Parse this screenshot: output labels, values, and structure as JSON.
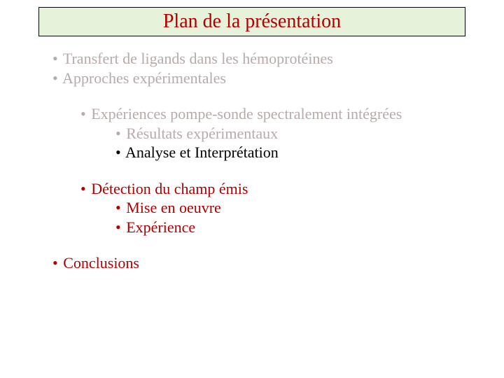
{
  "title": {
    "text": "Plan de la présentation",
    "font_size": 28,
    "color": "#b00000",
    "background": "#e6f2d9",
    "border_color": "#000000"
  },
  "bullets": {
    "l1a": "Transfert de ligands dans les hémoprotéines",
    "l1b": "Approches expérimentales",
    "l2a": "Expériences pompe-sonde spectralement intégrées",
    "l3a": "Résultats expérimentaux",
    "l3b": "Analyse et Interprétation",
    "l2b": "Détection du champ émis",
    "l3c": "Mise en oeuvre",
    "l3d": "Expérience",
    "l1c": "Conclusions"
  },
  "colors": {
    "dim": "#b8aaaa",
    "normal": "#000000",
    "highlight": "#b00000",
    "bg": "#ffffff"
  },
  "bullet_char": "•",
  "font_family": "Times New Roman"
}
